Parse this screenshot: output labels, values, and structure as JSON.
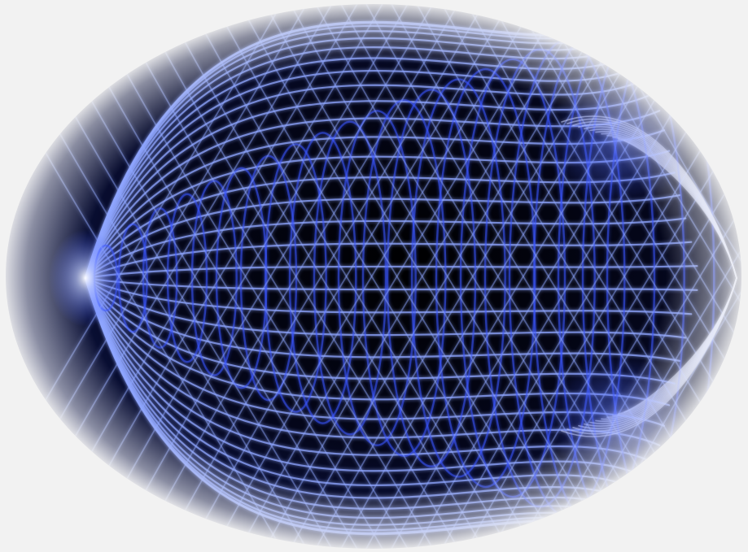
{
  "image": {
    "subject": "glowing-blue-wireframe-tunnel",
    "colors": {
      "page_background": "#f2f2f2",
      "vignette_edge": "#ececec",
      "deep_space": "#04061a",
      "mid_space": "#0b1240",
      "line_core": "#8fa6ff",
      "line_glow": "#3a55ff",
      "highlight": "#d8e0ff"
    }
  }
}
